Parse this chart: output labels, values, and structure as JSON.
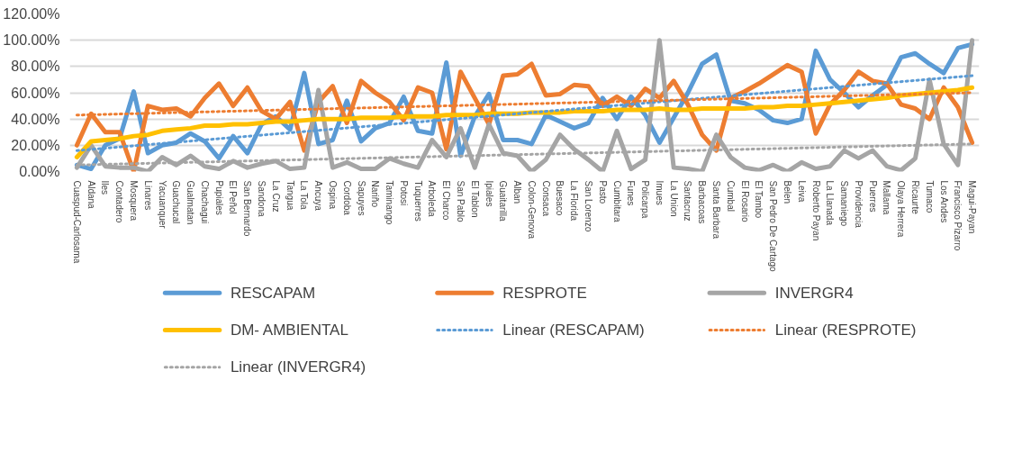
{
  "chart_data": {
    "type": "line",
    "categories": [
      "Cuaspud-Carlosama",
      "Aldana",
      "Iles",
      "Contadero",
      "Mosquera",
      "Linares",
      "Yacuanquer",
      "Guachucal",
      "Gualmatan",
      "Chachagui",
      "Pupiales",
      "El Peñol",
      "San Bernardo",
      "Sandona",
      "La Cruz",
      "Tangua",
      "La Tola",
      "Ancuya",
      "Ospina",
      "Cordoba",
      "Sapuyes",
      "Nariño",
      "Taminango",
      "Potosi",
      "Tuquerres",
      "Arboleda",
      "El Charco",
      "San Pablo",
      "El Tablon",
      "Ipiales",
      "Guaitarilla",
      "Alban",
      "Colon-Genova",
      "Consaca",
      "Buesaco",
      "La Florida",
      "San Lorenzo",
      "Pasto",
      "Cumbitara",
      "Funes",
      "Policarpa",
      "Imues",
      "La Union",
      "Santacruz",
      "Barbacoas",
      "Santa Barbara",
      "Cumbal",
      "El Rosario",
      "El Tambo",
      "San Pedro De Cartago",
      "Belen",
      "Leiva",
      "Roberto Payan",
      "La Llanada",
      "Samaniego",
      "Providencia",
      "Puerres",
      "Mallama",
      "Olaya Herrera",
      "Ricaurte",
      "Tumaco",
      "Los Andes",
      "Francisco Pizarro",
      "Magui-Payan"
    ],
    "series": [
      {
        "name": "RESCAPAM",
        "color": "#5b9bd5",
        "line_style": "solid",
        "values": [
          5,
          2,
          20,
          25,
          61,
          14,
          20,
          22,
          29,
          23,
          10,
          27,
          14,
          36,
          42,
          32,
          75,
          21,
          24,
          54,
          23,
          33,
          37,
          57,
          31,
          29,
          83,
          12,
          42,
          59,
          24,
          24,
          21,
          43,
          38,
          33,
          37,
          56,
          40,
          57,
          43,
          22,
          41,
          60,
          82,
          89,
          54,
          52,
          47,
          39,
          37,
          40,
          92,
          70,
          60,
          49,
          58,
          66,
          87,
          90,
          82,
          75,
          94,
          97
        ]
      },
      {
        "name": "RESPROTE",
        "color": "#ed7d31",
        "line_style": "solid",
        "values": [
          20,
          44,
          30,
          30,
          0,
          50,
          47,
          48,
          42,
          56,
          67,
          50,
          64,
          46,
          40,
          53,
          16,
          53,
          65,
          37,
          69,
          60,
          53,
          39,
          64,
          60,
          17,
          76,
          56,
          36,
          73,
          74,
          82,
          58,
          59,
          66,
          65,
          50,
          57,
          50,
          63,
          56,
          69,
          51,
          28,
          16,
          56,
          61,
          67,
          74,
          81,
          76,
          29,
          51,
          62,
          76,
          69,
          67,
          51,
          48,
          40,
          64,
          49,
          22
        ]
      },
      {
        "name": "INVERGR4",
        "color": "#a5a5a5",
        "line_style": "solid",
        "values": [
          3,
          20,
          4,
          3,
          3,
          0,
          11,
          5,
          12,
          4,
          2,
          8,
          3,
          6,
          8,
          2,
          3,
          62,
          3,
          7,
          2,
          2,
          10,
          6,
          3,
          24,
          11,
          33,
          3,
          36,
          14,
          12,
          0,
          9,
          28,
          17,
          9,
          0,
          31,
          2,
          9,
          100,
          3,
          2,
          0,
          28,
          11,
          3,
          1,
          5,
          0,
          7,
          2,
          4,
          16,
          10,
          16,
          4,
          1,
          10,
          70,
          21,
          5,
          100
        ]
      },
      {
        "name": "DM- AMBIENTAL",
        "color": "#ffc000",
        "line_style": "solid",
        "values": [
          11,
          23,
          24,
          25,
          27,
          28,
          31,
          32,
          33,
          35,
          35,
          36,
          36,
          37,
          38,
          38,
          39,
          40,
          40,
          40,
          41,
          41,
          41,
          42,
          42,
          42,
          43,
          43,
          43,
          44,
          44,
          44,
          45,
          45,
          45,
          46,
          46,
          46,
          47,
          47,
          47,
          48,
          47,
          47,
          48,
          48,
          48,
          48,
          49,
          49,
          50,
          50,
          51,
          52,
          53,
          54,
          55,
          56,
          58,
          59,
          60,
          61,
          62,
          64
        ]
      },
      {
        "name": "Linear (RESCAPAM)",
        "color": "#5b9bd5",
        "line_style": "dotted",
        "x": [
          "Cuaspud-Carlosama",
          "Magui-Payan"
        ],
        "values": [
          16,
          73
        ]
      },
      {
        "name": "Linear (RESPROTE)",
        "color": "#ed7d31",
        "line_style": "dotted",
        "x": [
          "Cuaspud-Carlosama",
          "Magui-Payan"
        ],
        "values": [
          43,
          60
        ]
      },
      {
        "name": "Linear (INVERGR4)",
        "color": "#a5a5a5",
        "line_style": "dotted",
        "x": [
          "Cuaspud-Carlosama",
          "Magui-Payan"
        ],
        "values": [
          5,
          21
        ]
      }
    ],
    "ylim": [
      0,
      120
    ],
    "yticks": [
      {
        "value": 0,
        "label": "0.00%"
      },
      {
        "value": 20,
        "label": "20.00%"
      },
      {
        "value": 40,
        "label": "40.00%"
      },
      {
        "value": 60,
        "label": "60.00%"
      },
      {
        "value": 80,
        "label": "80.00%"
      },
      {
        "value": 100,
        "label": "100.00%"
      },
      {
        "value": 120,
        "label": "120.00%"
      }
    ],
    "grid": "y",
    "legend": "bottom",
    "marker": "none"
  }
}
